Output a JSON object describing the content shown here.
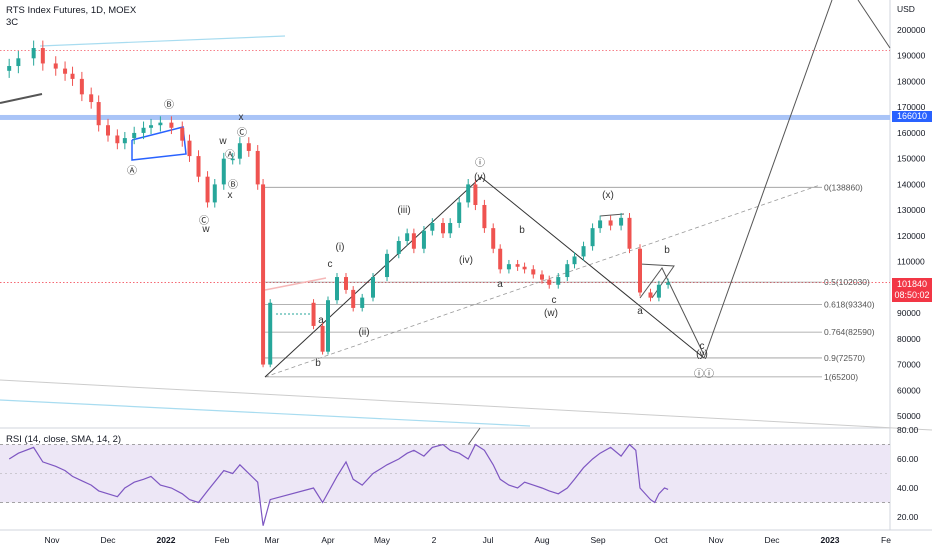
{
  "header": {
    "title": "RTS Index Futures, 1D, MOEX",
    "subtitle": "3C",
    "currency": "USD",
    "rsi_label": "RSI (14, close, SMA, 14, 2)"
  },
  "badges": {
    "level": "166010",
    "price": "101840",
    "countdown": "08:50:02",
    "level_color": "#2962ff",
    "price_color": "#f23645"
  },
  "chart_data": {
    "type": "candlestick",
    "price_axis": {
      "ticks": [
        200000,
        190000,
        180000,
        170000,
        160000,
        150000,
        140000,
        130000,
        120000,
        110000,
        100000,
        90000,
        80000,
        70000,
        60000,
        50000
      ],
      "labels": [
        "200000",
        "190000",
        "180000",
        "170000",
        "160000",
        "150000",
        "140000",
        "130000",
        "120000",
        "110000",
        "100000",
        "90000",
        "80000",
        "70000",
        "60000",
        "50000"
      ],
      "range": [
        45000,
        212000
      ]
    },
    "rsi_axis": {
      "ticks": [
        80,
        60,
        40,
        20
      ],
      "labels": [
        "80.00",
        "60.00",
        "40.00",
        "20.00"
      ],
      "range": [
        15,
        82
      ]
    },
    "time_axis": {
      "labels": [
        "Nov",
        "Dec",
        "2022",
        "Feb",
        "Mar",
        "Apr",
        "May",
        "2",
        "Jul",
        "Aug",
        "Sep",
        "Oct",
        "Nov",
        "Dec",
        "2023",
        "Fe"
      ]
    },
    "horizontal_levels": [
      {
        "value": 166010,
        "color": "#2962ff"
      },
      {
        "value": 101840,
        "color": "#f23645"
      }
    ],
    "fib_levels": [
      {
        "label": "0(138860)",
        "value": 138860
      },
      {
        "label": "0.5(102030)",
        "value": 102030
      },
      {
        "label": "0.618(93340)",
        "value": 93340
      },
      {
        "label": "0.764(82590)",
        "value": 82590
      },
      {
        "label": "0.9(72570)",
        "value": 72570
      },
      {
        "label": "1(65200)",
        "value": 65200
      }
    ],
    "wave_labels": [
      "Ⓑ",
      "Ⓐ",
      "Ⓒ",
      "x",
      "w",
      "Ⓐ",
      "Ⓑ",
      "Ⓒ",
      "x",
      "w",
      "(i)",
      "c",
      "a",
      "b",
      "(ii)",
      "(iii)",
      "(iv)",
      "(v)",
      "ⓘ",
      "b",
      "a",
      "c",
      "(w)",
      "(x)",
      "b",
      "a",
      "c",
      "(y)",
      "ⓘⓘ"
    ],
    "candles": [
      {
        "d": "2021-10-18",
        "v": 186000
      },
      {
        "d": "2021-10-21",
        "v": 189000
      },
      {
        "d": "2021-10-26",
        "v": 193000
      },
      {
        "d": "2021-10-29",
        "v": 187000
      },
      {
        "d": "2021-11-03",
        "v": 185000
      },
      {
        "d": "2021-11-08",
        "v": 183000
      },
      {
        "d": "2021-11-12",
        "v": 181000
      },
      {
        "d": "2021-11-17",
        "v": 175000
      },
      {
        "d": "2021-11-22",
        "v": 172000
      },
      {
        "d": "2021-11-26",
        "v": 163000
      },
      {
        "d": "2021-12-01",
        "v": 159000
      },
      {
        "d": "2021-12-06",
        "v": 156000
      },
      {
        "d": "2021-12-10",
        "v": 158000
      },
      {
        "d": "2021-12-15",
        "v": 160000
      },
      {
        "d": "2021-12-20",
        "v": 162000
      },
      {
        "d": "2021-12-24",
        "v": 163000
      },
      {
        "d": "2021-12-29",
        "v": 164000
      },
      {
        "d": "2022-01-04",
        "v": 162000
      },
      {
        "d": "2022-01-10",
        "v": 157000
      },
      {
        "d": "2022-01-14",
        "v": 151000
      },
      {
        "d": "2022-01-19",
        "v": 143000
      },
      {
        "d": "2022-01-24",
        "v": 133000
      },
      {
        "d": "2022-01-28",
        "v": 140000
      },
      {
        "d": "2022-02-02",
        "v": 150000
      },
      {
        "d": "2022-02-07",
        "v": 150000
      },
      {
        "d": "2022-02-11",
        "v": 156000
      },
      {
        "d": "2022-02-16",
        "v": 153000
      },
      {
        "d": "2022-02-21",
        "v": 140000
      },
      {
        "d": "2022-02-24",
        "v": 70000
      },
      {
        "d": "2022-02-28",
        "v": 94000
      },
      {
        "d": "2022-03-24",
        "v": 85000
      },
      {
        "d": "2022-03-29",
        "v": 75000
      },
      {
        "d": "2022-04-01",
        "v": 95000
      },
      {
        "d": "2022-04-06",
        "v": 104000
      },
      {
        "d": "2022-04-11",
        "v": 99000
      },
      {
        "d": "2022-04-15",
        "v": 92000
      },
      {
        "d": "2022-04-20",
        "v": 96000
      },
      {
        "d": "2022-04-26",
        "v": 104000
      },
      {
        "d": "2022-05-04",
        "v": 113000
      },
      {
        "d": "2022-05-11",
        "v": 118000
      },
      {
        "d": "2022-05-16",
        "v": 121000
      },
      {
        "d": "2022-05-20",
        "v": 115000
      },
      {
        "d": "2022-05-26",
        "v": 122000
      },
      {
        "d": "2022-05-31",
        "v": 125000
      },
      {
        "d": "2022-06-06",
        "v": 121000
      },
      {
        "d": "2022-06-10",
        "v": 125000
      },
      {
        "d": "2022-06-15",
        "v": 133000
      },
      {
        "d": "2022-06-20",
        "v": 140000
      },
      {
        "d": "2022-06-24",
        "v": 132000
      },
      {
        "d": "2022-06-29",
        "v": 123000
      },
      {
        "d": "2022-07-04",
        "v": 115000
      },
      {
        "d": "2022-07-08",
        "v": 107000
      },
      {
        "d": "2022-07-13",
        "v": 109000
      },
      {
        "d": "2022-07-18",
        "v": 108000
      },
      {
        "d": "2022-07-22",
        "v": 107000
      },
      {
        "d": "2022-07-27",
        "v": 105000
      },
      {
        "d": "2022-08-01",
        "v": 103000
      },
      {
        "d": "2022-08-05",
        "v": 101000
      },
      {
        "d": "2022-08-10",
        "v": 104000
      },
      {
        "d": "2022-08-15",
        "v": 109000
      },
      {
        "d": "2022-08-19",
        "v": 112000
      },
      {
        "d": "2022-08-24",
        "v": 116000
      },
      {
        "d": "2022-08-29",
        "v": 123000
      },
      {
        "d": "2022-09-02",
        "v": 126000
      },
      {
        "d": "2022-09-07",
        "v": 124000
      },
      {
        "d": "2022-09-12",
        "v": 127000
      },
      {
        "d": "2022-09-16",
        "v": 115000
      },
      {
        "d": "2022-09-21",
        "v": 98000
      },
      {
        "d": "2022-09-26",
        "v": 96000
      },
      {
        "d": "2022-09-30",
        "v": 101000
      },
      {
        "d": "2022-10-05",
        "v": 101840
      }
    ],
    "rsi_values": [
      60,
      64,
      68,
      58,
      55,
      52,
      48,
      45,
      42,
      38,
      36,
      34,
      40,
      44,
      46,
      48,
      42,
      40,
      36,
      32,
      30,
      38,
      52,
      50,
      56,
      44,
      14,
      32,
      40,
      30,
      48,
      58,
      46,
      42,
      50,
      56,
      60,
      64,
      66,
      62,
      68,
      70,
      66,
      64,
      60,
      70,
      66,
      56,
      46,
      42,
      40,
      44,
      42,
      40,
      38,
      36,
      40,
      46,
      54,
      60,
      64,
      68,
      62,
      70,
      66,
      40,
      32,
      30,
      36,
      40,
      39
    ],
    "rsi_dates": [
      "2021-10-18",
      "2021-10-21",
      "2021-10-26",
      "2021-10-29",
      "2021-11-03",
      "2021-11-08",
      "2021-11-12",
      "2021-11-17",
      "2021-11-22",
      "2021-11-26",
      "2021-12-01",
      "2021-12-06",
      "2021-12-10",
      "2021-12-15",
      "2021-12-20",
      "2021-12-24",
      "2021-12-29",
      "2022-01-04",
      "2022-01-10",
      "2022-01-14",
      "2022-01-19",
      "2022-01-24",
      "2022-02-02",
      "2022-02-07",
      "2022-02-11",
      "2022-02-21",
      "2022-02-24",
      "2022-02-28",
      "2022-03-24",
      "2022-03-29",
      "2022-04-06",
      "2022-04-11",
      "2022-04-15",
      "2022-04-20",
      "2022-04-26",
      "2022-05-04",
      "2022-05-11",
      "2022-05-16",
      "2022-05-20",
      "2022-05-26",
      "2022-05-31",
      "2022-06-06",
      "2022-06-10",
      "2022-06-15",
      "2022-06-20",
      "2022-06-24",
      "2022-06-29",
      "2022-07-04",
      "2022-07-08",
      "2022-07-13",
      "2022-07-18",
      "2022-07-22",
      "2022-07-27",
      "2022-08-01",
      "2022-08-05",
      "2022-08-10",
      "2022-08-15",
      "2022-08-19",
      "2022-08-24",
      "2022-08-29",
      "2022-09-02",
      "2022-09-07",
      "2022-09-12",
      "2022-09-16",
      "2022-09-19",
      "2022-09-21",
      "2022-09-26",
      "2022-09-28",
      "2022-09-30",
      "2022-10-03",
      "2022-10-05"
    ]
  }
}
